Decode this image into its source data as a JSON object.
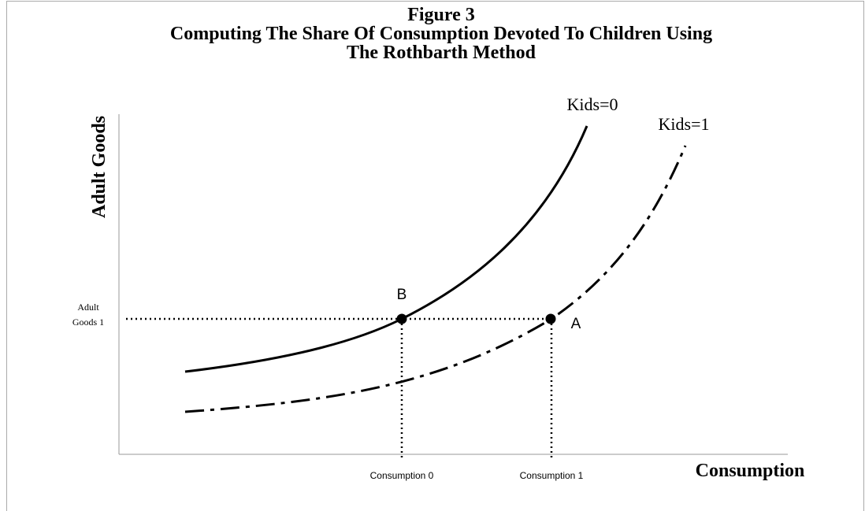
{
  "title": {
    "line1": "Figure 3",
    "line2": "Computing The Share Of Consumption Devoted To Children Using",
    "line3": "The Rothbarth Method"
  },
  "y_axis_label": "Adult Goods",
  "x_axis_label": "Consumption",
  "curves": [
    {
      "label": "Kids=0"
    },
    {
      "label": "Kids=1"
    }
  ],
  "points": [
    {
      "label": "B"
    },
    {
      "label": "A"
    }
  ],
  "y_marker": {
    "line1": "Adult",
    "line2": "Goods 1"
  },
  "x_markers": [
    "Consumption 0",
    "Consumption 1"
  ]
}
